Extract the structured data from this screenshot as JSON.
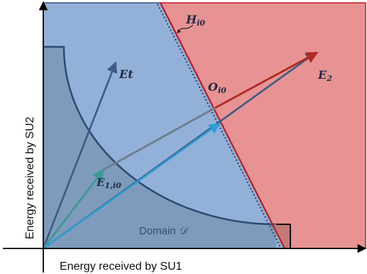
{
  "axes": {
    "x_label": "Energy received by SU1",
    "y_label": "Energy received by SU2"
  },
  "labels": {
    "hyperplane": "H",
    "hyperplane_sub": "i0",
    "intersection": "O",
    "intersection_sub": "i0",
    "vector_e2": "E",
    "vector_e2_sub": "2",
    "vector_et": "Et",
    "vector_e1": "E",
    "vector_e1_sub": "1,i0",
    "domain_text": "Domain ",
    "domain_symbol": "𝒟"
  },
  "colors": {
    "blue_region": "#93b1d8",
    "red_region": "#e79393",
    "domain_fill": "#7f9bbb",
    "arrow_dark": "#3c5b86",
    "arrow_light": "#2a9fd6",
    "arrow_teal": "#3a9a93",
    "arrow_gray": "#707c8e",
    "arrow_red": "#b02a22",
    "line_red": "#c4171e"
  }
}
